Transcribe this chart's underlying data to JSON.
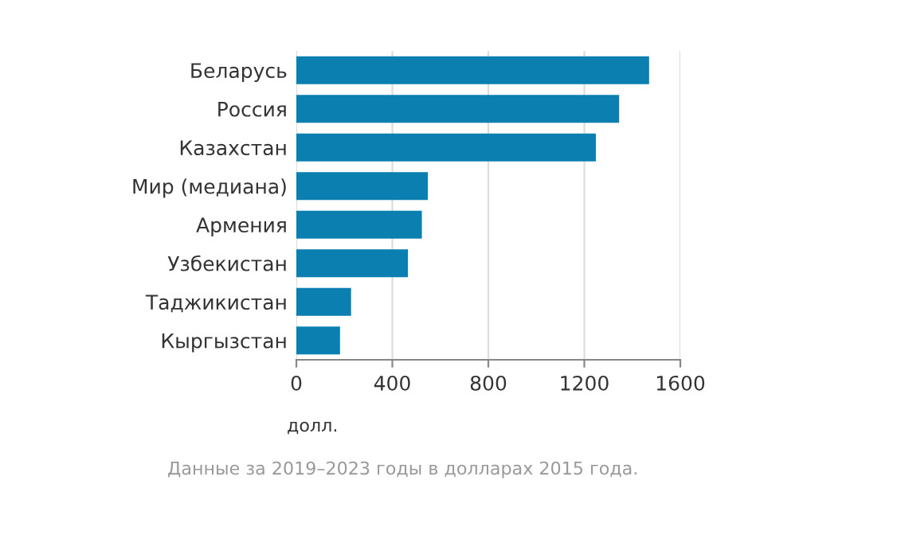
{
  "chart_data": {
    "type": "bar",
    "orientation": "horizontal",
    "categories": [
      "Беларусь",
      "Россия",
      "Казахстан",
      "Мир (медиана)",
      "Армения",
      "Узбекистан",
      "Таджикистан",
      "Кыргызстан"
    ],
    "values": [
      1470,
      1345,
      1248,
      548,
      523,
      465,
      228,
      182
    ],
    "color": "#0a7fb0",
    "xlim": [
      0,
      1600
    ],
    "xticks": [
      0,
      400,
      800,
      1200,
      1600
    ],
    "grid": "x",
    "xlabel": "долл.",
    "annotations": [
      "Данные за 2019–2023 годы в долларах 2015 года."
    ]
  }
}
